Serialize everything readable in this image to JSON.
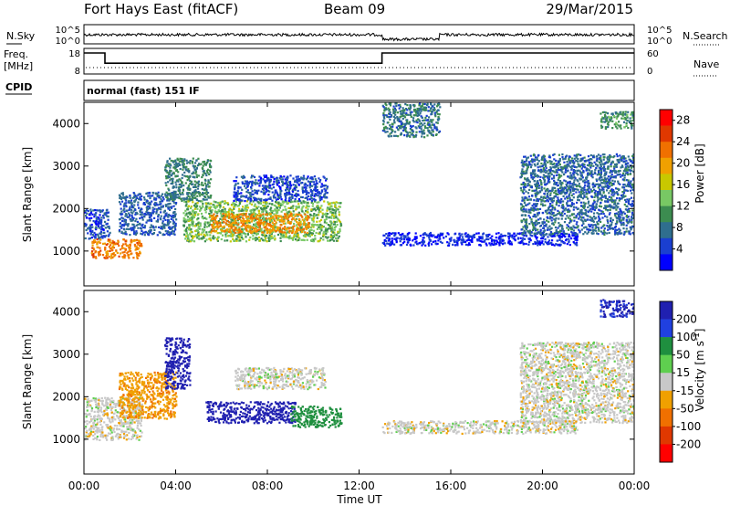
{
  "header": {
    "site": "Fort Hays East (fitACF)",
    "beam": "Beam 09",
    "date": "29/Mar/2015"
  },
  "status_panels": {
    "nsky_label": "N.Sky",
    "nsky_ticks": [
      "10^5",
      "10^0"
    ],
    "nsearch_label": "N.Search",
    "nsearch_ticks": [
      "10^5",
      "10^0"
    ],
    "freq_label_1": "Freq.",
    "freq_label_2": "[MHz]",
    "freq_ticks": [
      "18",
      "8"
    ],
    "nave_label": "Nave",
    "nave_ticks": [
      "60",
      "0"
    ],
    "cpid_label": "CPID",
    "cpid_text": "normal (fast) 151 IF",
    "freq_steps": [
      {
        "t_start": "00:00",
        "t_end": "00:55",
        "freq_mhz": 18
      },
      {
        "t_start": "00:55",
        "t_end": "13:00",
        "freq_mhz": 10
      },
      {
        "t_start": "13:00",
        "t_end": "24:00",
        "freq_mhz": 18
      }
    ]
  },
  "chart_data": [
    {
      "type": "heatmap",
      "panel": "power",
      "ylabel": "Slant Range [km]",
      "y_ticks": [
        "1000",
        "2000",
        "3000",
        "4000"
      ],
      "ylim": [
        180,
        4500
      ],
      "xlim": [
        "00:00",
        "24:00"
      ],
      "colorbar_label": "Power [dB]",
      "colorbar_ticks": [
        "4",
        "8",
        "12",
        "16",
        "20",
        "24",
        "28"
      ],
      "colorbar_range": [
        0,
        30
      ],
      "colors": [
        "#0000ff",
        "#1a3fd0",
        "#2f6e8e",
        "#3c8c50",
        "#78c864",
        "#c8c800",
        "#f0a000",
        "#f07000",
        "#e03800",
        "#ff0000"
      ],
      "regions": [
        {
          "t_start": 0.0,
          "t_end": 1.1,
          "r_low": 1300,
          "r_high": 2000,
          "power_db": 5
        },
        {
          "t_start": 0.3,
          "t_end": 2.5,
          "r_low": 850,
          "r_high": 1300,
          "power_db": 22
        },
        {
          "t_start": 1.5,
          "t_end": 4.0,
          "r_low": 1400,
          "r_high": 2400,
          "power_db": 6
        },
        {
          "t_start": 3.5,
          "t_end": 5.5,
          "r_low": 2200,
          "r_high": 3200,
          "power_db": 9
        },
        {
          "t_start": 4.3,
          "t_end": 11.2,
          "r_low": 1250,
          "r_high": 2200,
          "power_db": 13
        },
        {
          "t_start": 5.5,
          "t_end": 9.8,
          "r_low": 1450,
          "r_high": 1900,
          "power_db": 21
        },
        {
          "t_start": 6.5,
          "t_end": 10.6,
          "r_low": 2200,
          "r_high": 2800,
          "power_db": 5
        },
        {
          "t_start": 13.0,
          "t_end": 15.5,
          "r_low": 3700,
          "r_high": 4500,
          "power_db": 8
        },
        {
          "t_start": 13.0,
          "t_end": 21.5,
          "r_low": 1150,
          "r_high": 1450,
          "power_db": 3
        },
        {
          "t_start": 19.0,
          "t_end": 24.0,
          "r_low": 1400,
          "r_high": 3300,
          "power_db": 7
        },
        {
          "t_start": 22.5,
          "t_end": 24.0,
          "r_low": 3900,
          "r_high": 4300,
          "power_db": 10
        }
      ]
    },
    {
      "type": "heatmap",
      "panel": "velocity",
      "ylabel": "Slant Range [km]",
      "y_ticks": [
        "1000",
        "2000",
        "3000",
        "4000"
      ],
      "ylim": [
        180,
        4500
      ],
      "xlim": [
        "00:00",
        "24:00"
      ],
      "xlabel": "Time UT",
      "x_ticks": [
        "00:00",
        "04:00",
        "08:00",
        "12:00",
        "16:00",
        "20:00",
        "00:00"
      ],
      "colorbar_label": "Velocity [m s^-1]",
      "colorbar_ticks": [
        "200",
        "100",
        "50",
        "15",
        "-15",
        "-50",
        "-100",
        "-200"
      ],
      "colorbar_range": [
        -250,
        250
      ],
      "colors": [
        "#2020b0",
        "#2040e0",
        "#1f8f3f",
        "#5fcf4f",
        "#c8c8c8",
        "#f0a000",
        "#f07000",
        "#e03800",
        "#ff0000"
      ],
      "regions": [
        {
          "t_start": 0.0,
          "t_end": 2.5,
          "r_low": 1000,
          "r_high": 2000,
          "velocity": 0
        },
        {
          "t_start": 1.5,
          "t_end": 4.0,
          "r_low": 1500,
          "r_high": 2600,
          "velocity": -40
        },
        {
          "t_start": 3.5,
          "t_end": 4.6,
          "r_low": 2200,
          "r_high": 3400,
          "velocity": 220
        },
        {
          "t_start": 5.3,
          "t_end": 9.2,
          "r_low": 1400,
          "r_high": 1900,
          "velocity": 230
        },
        {
          "t_start": 6.5,
          "t_end": 10.5,
          "r_low": 2200,
          "r_high": 2700,
          "velocity": 0
        },
        {
          "t_start": 9.0,
          "t_end": 11.2,
          "r_low": 1300,
          "r_high": 1800,
          "velocity": 70
        },
        {
          "t_start": 13.0,
          "t_end": 21.5,
          "r_low": 1150,
          "r_high": 1450,
          "velocity": 0
        },
        {
          "t_start": 19.0,
          "t_end": 24.0,
          "r_low": 1400,
          "r_high": 3300,
          "velocity": 0
        },
        {
          "t_start": 22.5,
          "t_end": 24.0,
          "r_low": 3900,
          "r_high": 4300,
          "velocity": 210
        }
      ]
    }
  ]
}
